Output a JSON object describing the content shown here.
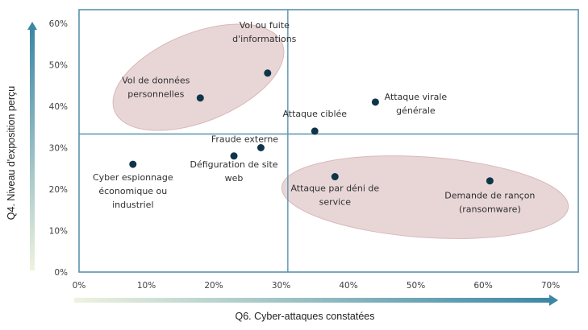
{
  "chart_data": {
    "type": "scatter",
    "xlabel": "Q6. Cyber-attaques constatées",
    "ylabel": "Q4. Niveau d'exposition perçu",
    "xlim": [
      0,
      0.74
    ],
    "ylim": [
      0,
      0.6
    ],
    "x_ticks": [
      "0%",
      "10%",
      "20%",
      "30%",
      "40%",
      "50%",
      "60%",
      "70%"
    ],
    "y_ticks": [
      "0%",
      "10%",
      "20%",
      "30%",
      "40%",
      "50%",
      "60%"
    ],
    "quadrant_lines": {
      "x": 0.31,
      "y": 0.333
    },
    "grid": false,
    "colors": {
      "point": "#0f3548",
      "frame": "#5a93ad",
      "ellipse_fill": "#e4cfd0",
      "ellipse_stroke": "#d9b8bb",
      "axis_gradient_start": "#eef3df",
      "axis_gradient_end": "#3c87a6"
    },
    "points": [
      {
        "label": [
          "Vol ou fuite",
          "d'informations"
        ],
        "x": 0.28,
        "y": 0.48
      },
      {
        "label": [
          "Vol de données",
          "personnelles"
        ],
        "x": 0.18,
        "y": 0.42
      },
      {
        "label": [
          "Attaque virale",
          "générale"
        ],
        "x": 0.44,
        "y": 0.41
      },
      {
        "label": [
          "Attaque ciblée"
        ],
        "x": 0.35,
        "y": 0.34
      },
      {
        "label": [
          "Fraude externe"
        ],
        "x": 0.27,
        "y": 0.3
      },
      {
        "label": [
          "Défiguration de site",
          "web"
        ],
        "x": 0.23,
        "y": 0.28
      },
      {
        "label": [
          "Cyber espionnage",
          "économique ou",
          "industriel"
        ],
        "x": 0.08,
        "y": 0.26
      },
      {
        "label": [
          "Attaque par déni de",
          "service"
        ],
        "x": 0.38,
        "y": 0.23
      },
      {
        "label": [
          "Demande de rançon",
          "(ransomware)"
        ],
        "x": 0.61,
        "y": 0.22
      }
    ]
  }
}
